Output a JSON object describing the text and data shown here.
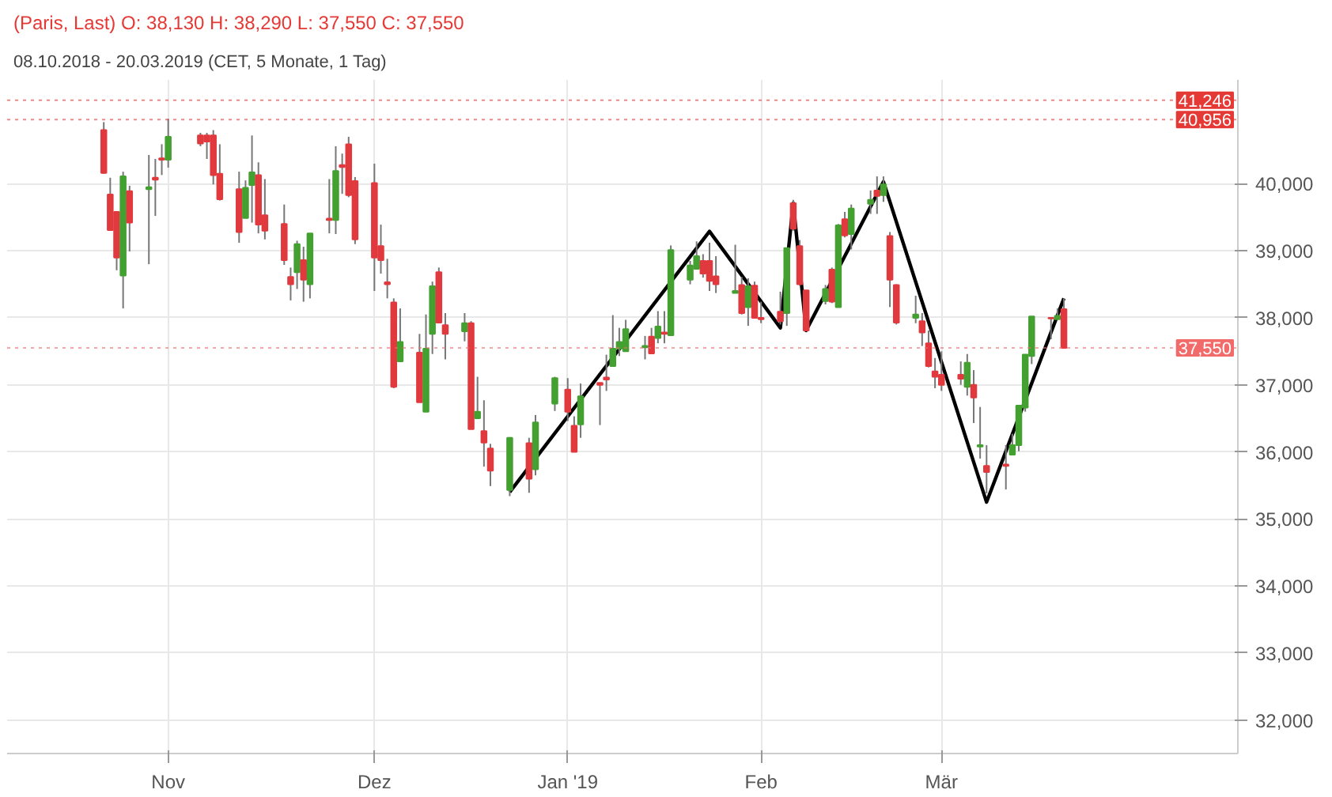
{
  "chart_data": {
    "type": "candlestick",
    "title": "(Paris, Last)  O: 38,130  H: 38,290  L: 37,550  C: 37,550",
    "subtitle": "08.10.2018 - 20.03.2019   (CET, 5 Monate, 1 Tag)",
    "x": [
      "2018-10-22",
      "2018-10-23",
      "2018-10-24",
      "2018-10-25",
      "2018-10-26",
      "2018-10-29",
      "2018-10-30",
      "2018-10-31",
      "2018-11-01",
      "2018-11-06",
      "2018-11-07",
      "2018-11-08",
      "2018-11-09",
      "2018-11-12",
      "2018-11-13",
      "2018-11-14",
      "2018-11-15",
      "2018-11-16",
      "2018-11-19",
      "2018-11-20",
      "2018-11-21",
      "2018-11-22",
      "2018-11-23",
      "2018-11-26",
      "2018-11-27",
      "2018-11-28",
      "2018-11-29",
      "2018-11-30",
      "2018-12-03",
      "2018-12-04",
      "2018-12-05",
      "2018-12-06",
      "2018-12-07",
      "2018-12-10",
      "2018-12-11",
      "2018-12-12",
      "2018-12-13",
      "2018-12-14",
      "2018-12-17",
      "2018-12-18",
      "2018-12-19",
      "2018-12-20",
      "2018-12-21",
      "2018-12-24",
      "2018-12-27",
      "2018-12-28",
      "2018-12-31",
      "2019-01-02",
      "2019-01-03",
      "2019-01-04",
      "2019-01-07",
      "2019-01-08",
      "2019-01-09",
      "2019-01-10",
      "2019-01-11",
      "2019-01-14",
      "2019-01-15",
      "2019-01-16",
      "2019-01-17",
      "2019-01-18",
      "2019-01-21",
      "2019-01-22",
      "2019-01-23",
      "2019-01-24",
      "2019-01-25",
      "2019-01-28",
      "2019-01-29",
      "2019-01-30",
      "2019-01-31",
      "2019-02-01",
      "2019-02-04",
      "2019-02-05",
      "2019-02-06",
      "2019-02-07",
      "2019-02-08",
      "2019-02-11",
      "2019-02-12",
      "2019-02-13",
      "2019-02-14",
      "2019-02-15",
      "2019-02-18",
      "2019-02-19",
      "2019-02-20",
      "2019-02-21",
      "2019-02-22",
      "2019-02-25",
      "2019-02-26",
      "2019-02-27",
      "2019-02-28",
      "2019-03-01",
      "2019-03-04",
      "2019-03-05",
      "2019-03-06",
      "2019-03-07",
      "2019-03-08",
      "2019-03-11",
      "2019-03-12",
      "2019-03-13",
      "2019-03-14",
      "2019-03-15",
      "2019-03-18",
      "2019-03-19",
      "2019-03-20"
    ],
    "ohlc": [
      [
        40800,
        40920,
        40150,
        40160
      ],
      [
        39840,
        40090,
        39310,
        39310
      ],
      [
        39580,
        39580,
        38710,
        38900
      ],
      [
        38630,
        40180,
        38140,
        40110
      ],
      [
        39890,
        39970,
        38990,
        39420
      ],
      [
        39920,
        40430,
        38800,
        39950
      ],
      [
        40090,
        40370,
        39520,
        40060
      ],
      [
        40380,
        40590,
        40130,
        40360
      ],
      [
        40360,
        40970,
        40240,
        40700
      ],
      [
        40720,
        40760,
        40560,
        40600
      ],
      [
        40720,
        40760,
        40370,
        40630
      ],
      [
        40720,
        40800,
        39990,
        40130
      ],
      [
        40150,
        40590,
        39750,
        39770
      ],
      [
        39920,
        40180,
        39120,
        39280
      ],
      [
        39490,
        40050,
        39490,
        39940
      ],
      [
        39980,
        40720,
        39420,
        40170
      ],
      [
        40130,
        40320,
        39260,
        39390
      ],
      [
        39530,
        40070,
        39170,
        39300
      ],
      [
        39400,
        39690,
        38790,
        38860
      ],
      [
        38610,
        38750,
        38260,
        38500
      ],
      [
        38680,
        39150,
        38430,
        39100
      ],
      [
        38860,
        39060,
        38240,
        38570
      ],
      [
        38500,
        39260,
        38290,
        39260
      ],
      [
        39480,
        40070,
        39260,
        39460
      ],
      [
        39460,
        40560,
        39250,
        40190
      ],
      [
        40280,
        40450,
        39850,
        40250
      ],
      [
        40590,
        40700,
        39800,
        39830
      ],
      [
        40040,
        40100,
        39100,
        39170
      ],
      [
        40010,
        40300,
        38400,
        38900
      ],
      [
        39070,
        39390,
        38660,
        38860
      ],
      [
        38530,
        38880,
        38290,
        38500
      ],
      [
        38230,
        38290,
        36950,
        36970
      ],
      [
        37350,
        38140,
        37350,
        37640
      ],
      [
        37480,
        37760,
        36740,
        36740
      ],
      [
        36600,
        38050,
        36600,
        37540
      ],
      [
        37760,
        38540,
        37460,
        38470
      ],
      [
        38680,
        38750,
        37930,
        37930
      ],
      [
        37890,
        38070,
        37380,
        37760
      ],
      [
        37800,
        38070,
        37650,
        37920
      ],
      [
        37920,
        37950,
        36340,
        36340
      ],
      [
        36500,
        37120,
        36500,
        36600
      ],
      [
        36310,
        36770,
        35780,
        36140
      ],
      [
        36050,
        36120,
        35490,
        35720
      ],
      [
        35430,
        36220,
        35340,
        36210
      ],
      [
        36130,
        36210,
        35390,
        35600
      ],
      [
        35740,
        36550,
        35650,
        36440
      ],
      [
        36720,
        37120,
        36610,
        37100
      ],
      [
        36930,
        37100,
        36460,
        36600
      ],
      [
        36390,
        36530,
        36000,
        36000
      ],
      [
        36410,
        37020,
        36210,
        36830
      ],
      [
        37030,
        37030,
        36400,
        37000
      ],
      [
        37110,
        37450,
        36910,
        37080
      ],
      [
        37280,
        38040,
        37280,
        37540
      ],
      [
        37540,
        37850,
        37430,
        37640
      ],
      [
        37500,
        37970,
        37500,
        37830
      ],
      [
        37560,
        37730,
        37380,
        37580
      ],
      [
        37720,
        37850,
        37470,
        37470
      ],
      [
        37700,
        38100,
        37620,
        37870
      ],
      [
        37780,
        38100,
        37620,
        37760
      ],
      [
        37740,
        39080,
        37740,
        39010
      ],
      [
        38570,
        38850,
        38500,
        38780
      ],
      [
        38730,
        39140,
        38730,
        38920
      ],
      [
        38850,
        38950,
        38600,
        38660
      ],
      [
        38850,
        39120,
        38400,
        38550
      ],
      [
        38620,
        38920,
        38370,
        38500
      ],
      [
        38370,
        39090,
        38370,
        38400
      ],
      [
        38490,
        38610,
        38050,
        38070
      ],
      [
        38160,
        38590,
        37880,
        38470
      ],
      [
        38480,
        38540,
        37990,
        38000
      ],
      [
        38000,
        38240,
        37920,
        37980
      ],
      [
        38090,
        38390,
        37900,
        37950
      ],
      [
        38070,
        39040,
        37880,
        39040
      ],
      [
        39710,
        39760,
        39300,
        39330
      ],
      [
        39070,
        39160,
        38480,
        38500
      ],
      [
        38410,
        38410,
        37800,
        37810
      ],
      [
        38250,
        38490,
        38200,
        38430
      ],
      [
        38720,
        38750,
        38220,
        38240
      ],
      [
        38160,
        39400,
        38160,
        39380
      ],
      [
        39470,
        39580,
        39200,
        39230
      ],
      [
        39250,
        39690,
        39020,
        39630
      ],
      [
        39700,
        39900,
        39550,
        39760
      ],
      [
        39900,
        40110,
        39550,
        39820
      ],
      [
        39830,
        40110,
        39730,
        39990
      ],
      [
        39220,
        39280,
        38160,
        38570
      ],
      [
        38490,
        38500,
        37900,
        37930
      ],
      [
        38000,
        38330,
        37920,
        38050
      ],
      [
        37950,
        38070,
        37580,
        37780
      ],
      [
        37620,
        37810,
        37260,
        37280
      ],
      [
        37200,
        37400,
        36950,
        37120
      ],
      [
        37150,
        37500,
        36910,
        37000
      ],
      [
        37150,
        37350,
        37000,
        37090
      ],
      [
        36970,
        37460,
        36840,
        37330
      ],
      [
        37000,
        37220,
        36430,
        36810
      ],
      [
        36080,
        36670,
        35900,
        36100
      ],
      [
        35790,
        36100,
        35380,
        35700
      ],
      [
        35810,
        36100,
        35440,
        35790
      ],
      [
        35960,
        36270,
        35950,
        36100
      ],
      [
        36100,
        36690,
        36010,
        36690
      ],
      [
        36660,
        37450,
        36600,
        37450
      ],
      [
        37430,
        38020,
        37310,
        38020
      ],
      [
        38000,
        38000,
        37680,
        37990
      ],
      [
        37980,
        38140,
        37980,
        38030
      ],
      [
        38130,
        38290,
        37550,
        37550
      ]
    ],
    "colors": [
      "#e0393e",
      "#e0393e",
      "#e0393e",
      "#43a031",
      "#e0393e",
      "#43a031",
      "#e0393e",
      "#e0393e",
      "#43a031",
      "#e0393e",
      "#e0393e",
      "#e0393e",
      "#e0393e",
      "#e0393e",
      "#43a031",
      "#43a031",
      "#e0393e",
      "#e0393e",
      "#e0393e",
      "#e0393e",
      "#43a031",
      "#e0393e",
      "#43a031",
      "#e0393e",
      "#43a031",
      "#e0393e",
      "#e0393e",
      "#e0393e",
      "#e0393e",
      "#e0393e",
      "#e0393e",
      "#e0393e",
      "#43a031",
      "#e0393e",
      "#43a031",
      "#43a031",
      "#e0393e",
      "#e0393e",
      "#43a031",
      "#e0393e",
      "#43a031",
      "#e0393e",
      "#e0393e",
      "#43a031",
      "#e0393e",
      "#43a031",
      "#43a031",
      "#e0393e",
      "#e0393e",
      "#43a031",
      "#e0393e",
      "#e0393e",
      "#43a031",
      "#43a031",
      "#43a031",
      "#43a031",
      "#e0393e",
      "#43a031",
      "#e0393e",
      "#43a031",
      "#43a031",
      "#43a031",
      "#e0393e",
      "#e0393e",
      "#e0393e",
      "#43a031",
      "#e0393e",
      "#43a031",
      "#e0393e",
      "#e0393e",
      "#e0393e",
      "#43a031",
      "#e0393e",
      "#e0393e",
      "#e0393e",
      "#43a031",
      "#e0393e",
      "#43a031",
      "#e0393e",
      "#43a031",
      "#43a031",
      "#e0393e",
      "#43a031",
      "#e0393e",
      "#e0393e",
      "#43a031",
      "#e0393e",
      "#e0393e",
      "#e0393e",
      "#e0393e",
      "#e0393e",
      "#43a031",
      "#e0393e",
      "#43a031",
      "#e0393e",
      "#e0393e",
      "#43a031",
      "#43a031",
      "#43a031",
      "#43a031",
      "#e0393e",
      "#43a031",
      "#e0393e"
    ],
    "series": [
      {
        "type": "line",
        "color": "#000000",
        "x": [
          "2018-12-24",
          "2019-01-24",
          "2019-02-04",
          "2019-02-06",
          "2019-02-08",
          "2019-02-20",
          "2019-03-08",
          "2019-03-20"
        ],
        "values": [
          35400,
          39290,
          37850,
          39710,
          37810,
          40030,
          35250,
          38290
        ]
      }
    ],
    "xlim": [
      "2018-10-07",
      "2019-04-16"
    ],
    "xticks": [
      {
        "value": "2018-11-01",
        "label": "Nov"
      },
      {
        "value": "2018-12-03",
        "label": "Dez"
      },
      {
        "value": "2019-01-02",
        "label": "Jan '19"
      },
      {
        "value": "2019-02-01",
        "label": "Feb"
      },
      {
        "value": "2019-03-01",
        "label": "Mär"
      }
    ],
    "ylim": [
      31500,
      41550
    ],
    "yticks": [
      {
        "value": 32000,
        "label": "32,000"
      },
      {
        "value": 33000,
        "label": "33,000"
      },
      {
        "value": 34000,
        "label": "34,000"
      },
      {
        "value": 35000,
        "label": "35,000"
      },
      {
        "value": 36000,
        "label": "36,000"
      },
      {
        "value": 37000,
        "label": "37,000"
      },
      {
        "value": 38000,
        "label": "38,000"
      },
      {
        "value": 39000,
        "label": "39,000"
      },
      {
        "value": 40000,
        "label": "40,000"
      }
    ],
    "ref_lines": [
      {
        "axis": "y",
        "value": 41246,
        "label": "41,246",
        "color": "#e53935"
      },
      {
        "axis": "y",
        "value": 40956,
        "label": "40,956",
        "color": "#e53935"
      },
      {
        "axis": "y",
        "value": 37550,
        "label": "37,550",
        "color": "#f26b6b"
      }
    ],
    "grid": true
  }
}
